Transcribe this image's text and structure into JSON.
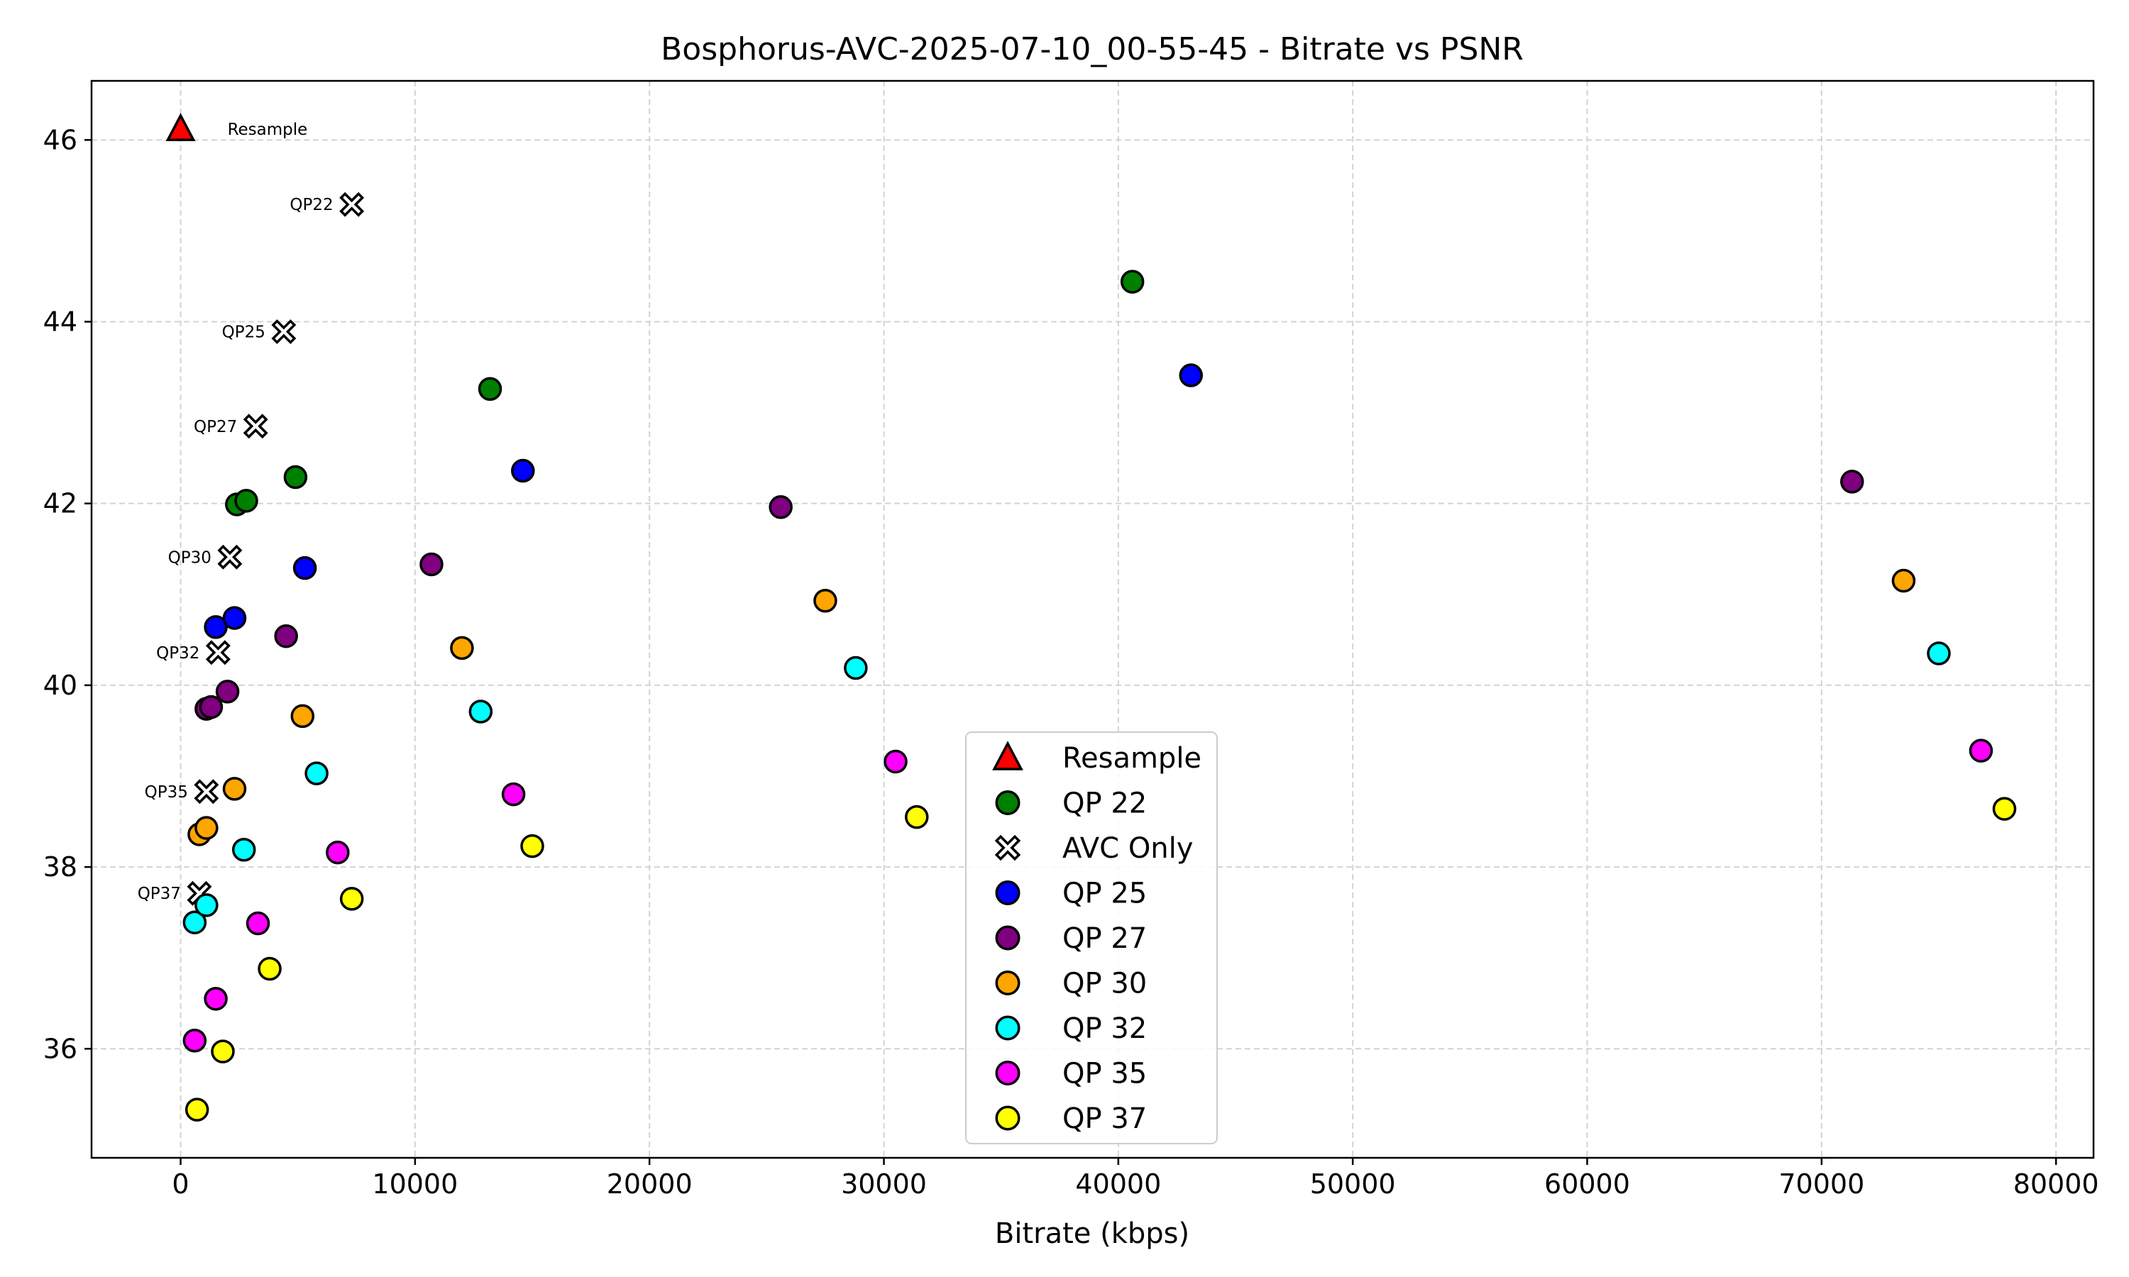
{
  "chart_data": {
    "type": "scatter",
    "title": "Bosphorus-AVC-2025-07-10_00-55-45 - Bitrate vs PSNR",
    "xlabel": "Bitrate (kbps)",
    "ylabel": "",
    "xlim": [
      -3800,
      81600
    ],
    "ylim": [
      34.8,
      46.65
    ],
    "x_ticks": [
      0,
      10000,
      20000,
      30000,
      40000,
      50000,
      60000,
      70000,
      80000
    ],
    "y_ticks": [
      36,
      38,
      40,
      42,
      44,
      46
    ],
    "grid": true,
    "legend_position": "lower-center",
    "series": [
      {
        "name": "Resample",
        "marker": "triangle",
        "color": "#ff0000",
        "points": [
          {
            "x": 0,
            "y": 46.12
          }
        ]
      },
      {
        "name": "QP 22",
        "marker": "circle",
        "color": "#008000",
        "points": [
          {
            "x": 2400,
            "y": 41.99
          },
          {
            "x": 2800,
            "y": 42.03
          },
          {
            "x": 4900,
            "y": 42.29
          },
          {
            "x": 13200,
            "y": 43.26
          },
          {
            "x": 40600,
            "y": 44.44
          }
        ]
      },
      {
        "name": "AVC Only",
        "marker": "x",
        "color": "#ffffff",
        "points": [
          {
            "x": 7300,
            "y": 45.29,
            "label": "QP22"
          },
          {
            "x": 4400,
            "y": 43.89,
            "label": "QP25"
          },
          {
            "x": 3200,
            "y": 42.85,
            "label": "QP27"
          },
          {
            "x": 2100,
            "y": 41.41,
            "label": "QP30"
          },
          {
            "x": 1600,
            "y": 40.36,
            "label": "QP32"
          },
          {
            "x": 1100,
            "y": 38.83,
            "label": "QP35"
          },
          {
            "x": 800,
            "y": 37.71,
            "label": "QP37"
          }
        ]
      },
      {
        "name": "QP 25",
        "marker": "circle",
        "color": "#0000ff",
        "points": [
          {
            "x": 1500,
            "y": 40.64
          },
          {
            "x": 2300,
            "y": 40.74
          },
          {
            "x": 5300,
            "y": 41.29
          },
          {
            "x": 14600,
            "y": 42.36
          },
          {
            "x": 43100,
            "y": 43.41
          }
        ]
      },
      {
        "name": "QP 27",
        "marker": "circle",
        "color": "#800080",
        "points": [
          {
            "x": 1100,
            "y": 39.74
          },
          {
            "x": 1300,
            "y": 39.76
          },
          {
            "x": 2000,
            "y": 39.93
          },
          {
            "x": 4500,
            "y": 40.54
          },
          {
            "x": 10700,
            "y": 41.33
          },
          {
            "x": 25600,
            "y": 41.96
          },
          {
            "x": 71300,
            "y": 42.24
          }
        ]
      },
      {
        "name": "QP 30",
        "marker": "circle",
        "color": "#ffa500",
        "points": [
          {
            "x": 800,
            "y": 38.36
          },
          {
            "x": 1100,
            "y": 38.43
          },
          {
            "x": 2300,
            "y": 38.86
          },
          {
            "x": 5200,
            "y": 39.66
          },
          {
            "x": 12000,
            "y": 40.41
          },
          {
            "x": 27500,
            "y": 40.93
          },
          {
            "x": 73500,
            "y": 41.15
          }
        ]
      },
      {
        "name": "QP 32",
        "marker": "circle",
        "color": "#00ffff",
        "points": [
          {
            "x": 600,
            "y": 37.39
          },
          {
            "x": 1100,
            "y": 37.58
          },
          {
            "x": 2700,
            "y": 38.19
          },
          {
            "x": 5800,
            "y": 39.03
          },
          {
            "x": 12800,
            "y": 39.71
          },
          {
            "x": 28800,
            "y": 40.19
          },
          {
            "x": 75000,
            "y": 40.35
          }
        ]
      },
      {
        "name": "QP 35",
        "marker": "circle",
        "color": "#ff00ff",
        "points": [
          {
            "x": 600,
            "y": 36.09
          },
          {
            "x": 1500,
            "y": 36.55
          },
          {
            "x": 3300,
            "y": 37.38
          },
          {
            "x": 6700,
            "y": 38.16
          },
          {
            "x": 14200,
            "y": 38.8
          },
          {
            "x": 30500,
            "y": 39.16
          },
          {
            "x": 76800,
            "y": 39.28
          }
        ]
      },
      {
        "name": "QP 37",
        "marker": "circle",
        "color": "#ffff00",
        "points": [
          {
            "x": 700,
            "y": 35.33
          },
          {
            "x": 1800,
            "y": 35.97
          },
          {
            "x": 3800,
            "y": 36.88
          },
          {
            "x": 7300,
            "y": 37.65
          },
          {
            "x": 15000,
            "y": 38.23
          },
          {
            "x": 31400,
            "y": 38.55
          },
          {
            "x": 77800,
            "y": 38.64
          }
        ]
      }
    ],
    "annotations": [
      {
        "text": "Resample",
        "x": 2000,
        "y": 46.12
      }
    ]
  }
}
